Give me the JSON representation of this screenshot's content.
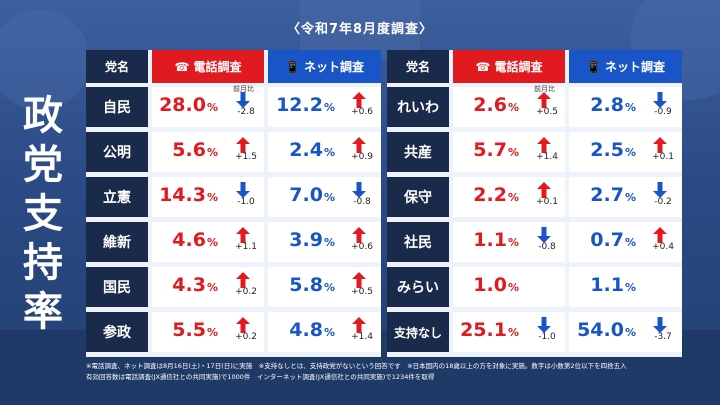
{
  "survey_date": "〈令和7年8月度調査〉",
  "title_chars": [
    "政",
    "党",
    "支",
    "持",
    "率"
  ],
  "headers": {
    "party": "党名",
    "phone": "電話調査",
    "net": "ネット調査"
  },
  "mom_label": "前月比",
  "colors": {
    "phone": "#e01a1f",
    "net": "#1a55c8",
    "label_bg": "#1a2a4a",
    "up": "#e01a1f",
    "down": "#1a55c8"
  },
  "footnote": {
    "line1": "※電話調査、ネット調査は8月16日(土)・17日(日)に実施　※支持なしとは、支持政党がないという回答です　※日本国内の18歳以上の方を対象に実施。数字は小数第2位以下を四捨五入",
    "line2": "有効回答数は電話調査(JX通信社との共同実施)で1000件　インターネット調査(JX通信社との共同実施)で1234件を取得"
  },
  "chart_data": {
    "type": "table",
    "title": "政党支持率",
    "unit": "%",
    "columns": [
      "電話調査",
      "ネット調査"
    ],
    "left": [
      {
        "party": "自民",
        "phone": 28.0,
        "phone_change": -2.8,
        "net": 12.2,
        "net_change": 0.6
      },
      {
        "party": "公明",
        "phone": 5.6,
        "phone_change": 1.5,
        "net": 2.4,
        "net_change": 0.9
      },
      {
        "party": "立憲",
        "phone": 14.3,
        "phone_change": -1.0,
        "net": 7.0,
        "net_change": -0.8
      },
      {
        "party": "維新",
        "phone": 4.6,
        "phone_change": 1.1,
        "net": 3.9,
        "net_change": 0.6
      },
      {
        "party": "国民",
        "phone": 4.3,
        "phone_change": 0.2,
        "net": 5.8,
        "net_change": 0.5
      },
      {
        "party": "参政",
        "phone": 5.5,
        "phone_change": 0.2,
        "net": 4.8,
        "net_change": 1.4
      }
    ],
    "right": [
      {
        "party": "れいわ",
        "phone": 2.6,
        "phone_change": 0.5,
        "net": 2.8,
        "net_change": -0.9
      },
      {
        "party": "共産",
        "phone": 5.7,
        "phone_change": 1.4,
        "net": 2.5,
        "net_change": 0.1
      },
      {
        "party": "保守",
        "phone": 2.2,
        "phone_change": 0.1,
        "net": 2.7,
        "net_change": -0.2
      },
      {
        "party": "社民",
        "phone": 1.1,
        "phone_change": -0.8,
        "net": 0.7,
        "net_change": 0.4
      },
      {
        "party": "みらい",
        "phone": 1.0,
        "phone_change": null,
        "net": 1.1,
        "net_change": null
      },
      {
        "party": "支持なし",
        "phone": 25.1,
        "phone_change": -1.0,
        "net": 54.0,
        "net_change": -3.7
      }
    ]
  }
}
